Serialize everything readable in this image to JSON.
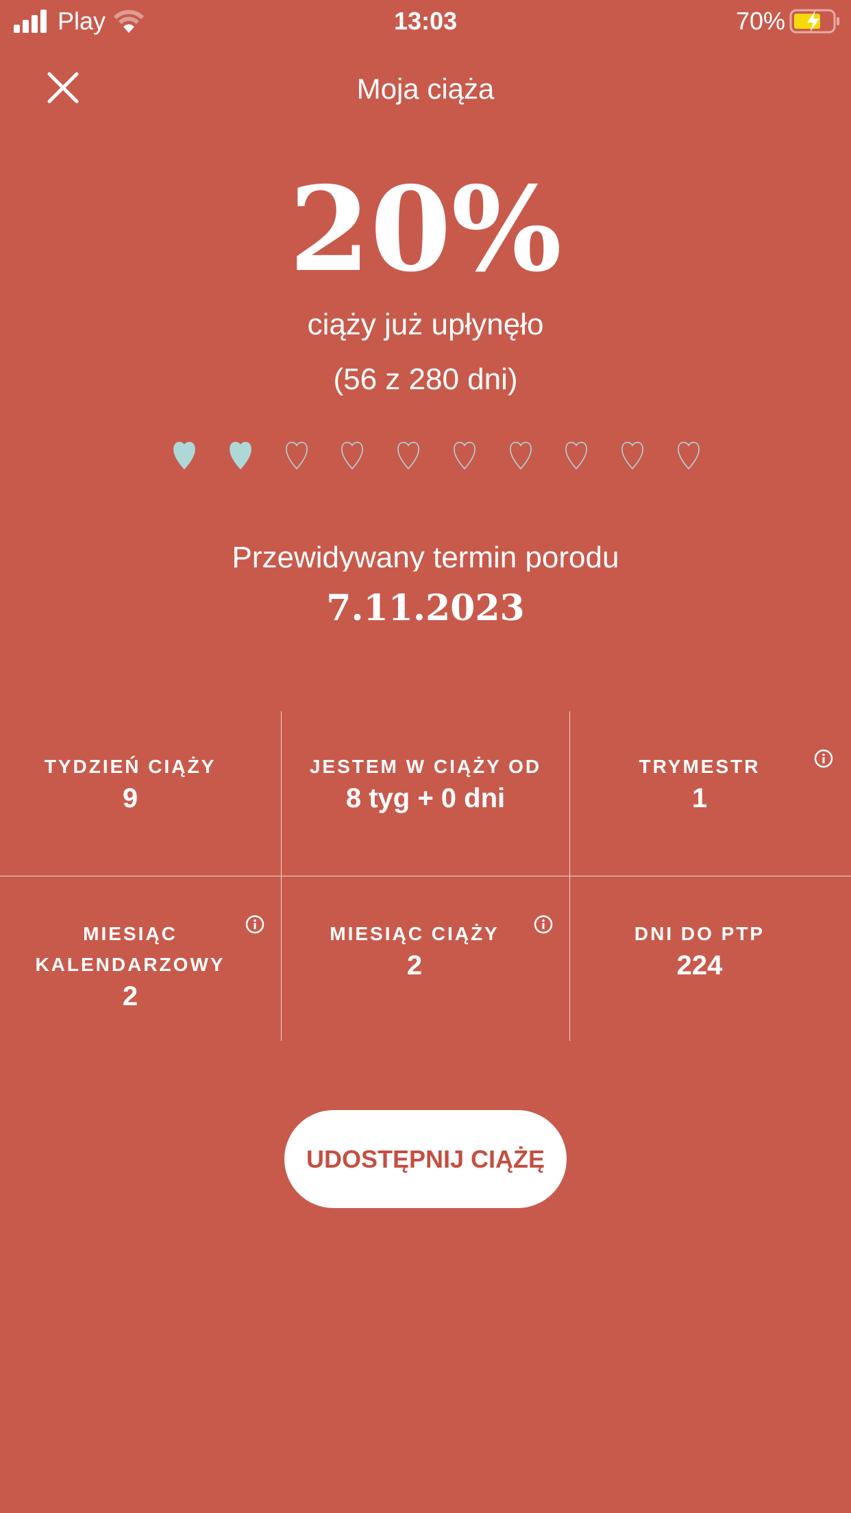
{
  "status_bar": {
    "carrier": "Play",
    "time": "13:03",
    "battery": "70%",
    "signal_icon": "signal-bars-icon",
    "wifi_icon": "wifi-icon",
    "battery_icon": "battery-charging-icon"
  },
  "header": {
    "title": "Moja ciąża",
    "close_icon": "close-icon"
  },
  "progress": {
    "percent_label": "20%",
    "percent": 20,
    "elapsed_text": "ciąży już upłynęło",
    "days_text": "(56 z 280 dni)",
    "hearts_total": 10,
    "hearts_filled": 2,
    "heart_color": "#ADD8D7"
  },
  "due": {
    "label": "Przewidywany termin porodu",
    "date": "7.11.2023"
  },
  "stats": [
    {
      "label": "TYDZIEŃ CIĄŻY",
      "value": "9"
    },
    {
      "label": "JESTEM W CIĄŻY OD",
      "value": "8 tyg + 0 dni"
    },
    {
      "label": "TRYMESTR",
      "value": "1",
      "info": true
    },
    {
      "label": "MIESIĄC KALENDARZOWY",
      "value": "2",
      "info": true
    },
    {
      "label": "MIESIĄC CIĄŻY",
      "value": "2",
      "info": true
    },
    {
      "label": "DNI DO PTP",
      "value": "224"
    }
  ],
  "share_button": {
    "label": "UDOSTĘPNIJ CIĄŻĘ"
  },
  "colors": {
    "background": "#C85A4C",
    "button_text": "#C25042",
    "battery_fill": "#F5D90A"
  }
}
